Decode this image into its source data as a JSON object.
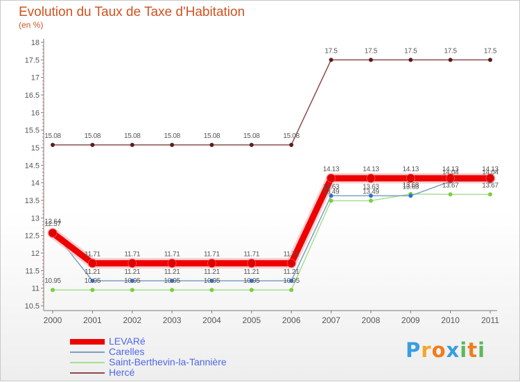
{
  "colors": {
    "title": "#d0521f",
    "axis_text": "#555555",
    "label_text": "#555555",
    "legend_text": "#4e67e6"
  },
  "logo": {
    "letters": [
      "P",
      "r",
      "o",
      "x",
      "i",
      "t",
      "i"
    ],
    "colors": [
      "#3a9de0",
      "#f5a623",
      "#f07c1e",
      "#3a9de0",
      "#5cb85c",
      "#f07c1e",
      "#5cb85c"
    ]
  },
  "chart_data": {
    "type": "line",
    "title": "Evolution du Taux de Taxe d'Habitation",
    "subtitle": "(en %)",
    "xlabel": "",
    "ylabel": "",
    "categories": [
      "2000",
      "2001",
      "2002",
      "2003",
      "2004",
      "2005",
      "2006",
      "2007",
      "2008",
      "2009",
      "2010",
      "2011"
    ],
    "ylim": [
      10.5,
      18
    ],
    "yticks": [
      "10.5",
      "11",
      "11.5",
      "12",
      "12.5",
      "13",
      "13.5",
      "14",
      "14.5",
      "15",
      "15.5",
      "16",
      "16.5",
      "17",
      "17.5",
      "18"
    ],
    "legend_position": "bottom-left",
    "series": [
      {
        "name": "LEVARé",
        "color": "#ee0000",
        "width": 9,
        "marker": "#dd0000",
        "values": [
          12.57,
          11.71,
          11.71,
          11.71,
          11.71,
          11.71,
          11.71,
          14.13,
          14.13,
          14.13,
          14.13,
          14.13
        ],
        "labels": [
          "12.57",
          "11.71",
          "11.71",
          "11.71",
          "11.71",
          "11.71",
          "11.71",
          "14.13",
          "14.13",
          "14.13",
          "14.13",
          "14.13"
        ]
      },
      {
        "name": "Carelles",
        "color": "#7a9fc2",
        "width": 1.5,
        "marker": "#2f6fd0",
        "values": [
          12.64,
          11.21,
          11.21,
          11.21,
          11.21,
          11.21,
          11.21,
          13.63,
          13.63,
          13.63,
          14.04,
          14.04
        ],
        "labels": [
          "12.64",
          "11.21",
          "11.21",
          "11.21",
          "11.21",
          "11.21",
          "11.21",
          "13.63",
          "13.63",
          "13.63",
          "14.04",
          "14.04"
        ]
      },
      {
        "name": "Saint-Berthevin-la-Tannière",
        "color": "#a5df8f",
        "width": 1.5,
        "marker": "#7ccf3c",
        "values": [
          10.95,
          10.95,
          10.95,
          10.95,
          10.95,
          10.95,
          10.95,
          13.49,
          13.49,
          13.68,
          13.67,
          13.67
        ],
        "labels": [
          "10.95",
          "10.95",
          "10.95",
          "10.95",
          "10.95",
          "10.95",
          "10.95",
          "13.49",
          "13.49",
          "13.68",
          "13.67",
          "13.67"
        ]
      },
      {
        "name": "Hercé",
        "color": "#8a4a4a",
        "width": 1.5,
        "marker": "#5b1e1e",
        "values": [
          15.08,
          15.08,
          15.08,
          15.08,
          15.08,
          15.08,
          15.08,
          17.5,
          17.5,
          17.5,
          17.5,
          17.5
        ],
        "labels": [
          "15.08",
          "15.08",
          "15.08",
          "15.08",
          "15.08",
          "15.08",
          "15.08",
          "17.5",
          "17.5",
          "17.5",
          "17.5",
          "17.5"
        ]
      }
    ]
  }
}
